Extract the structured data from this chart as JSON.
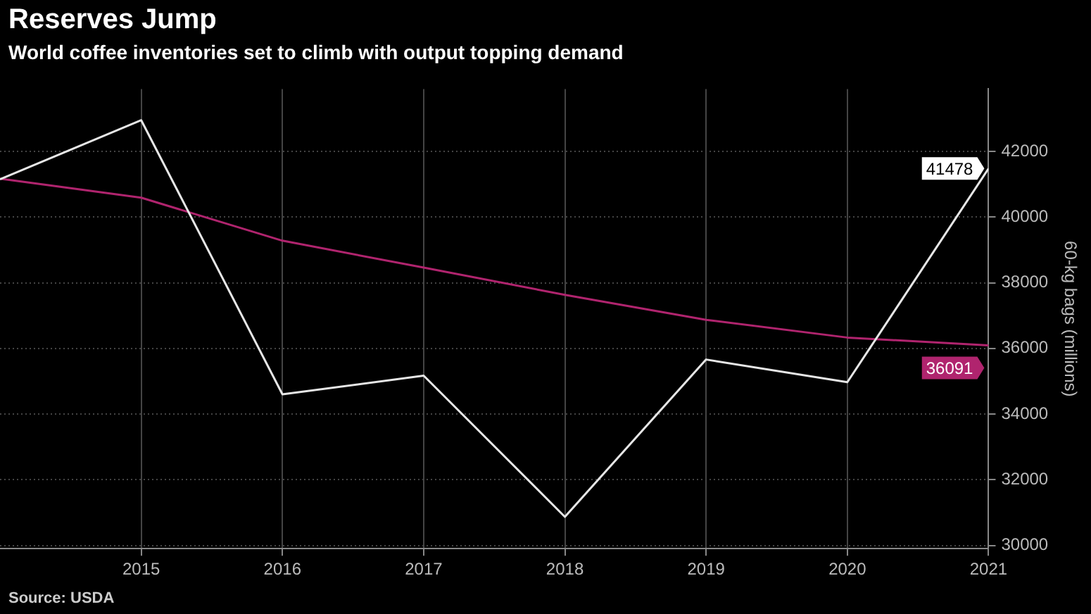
{
  "chart_data": {
    "type": "line",
    "title": "Reserves Jump",
    "subtitle": "World coffee inventories set to climb with output topping demand",
    "ylabel": "60-kg bags (millions)",
    "annotations": [
      "Source: USDA"
    ],
    "x": [
      2014,
      2015,
      2016,
      2017,
      2018,
      2019,
      2020,
      2021
    ],
    "series": [
      {
        "color": "#e6e6e6",
        "values": [
          41150,
          42950,
          34600,
          35170,
          30870,
          35660,
          34970,
          41478
        ],
        "value_labels": [
          null,
          null,
          null,
          null,
          null,
          null,
          null,
          "41478"
        ]
      },
      {
        "color": "#b0246e",
        "values": [
          41170,
          40590,
          39280,
          38460,
          37630,
          36870,
          36330,
          36091
        ],
        "value_labels": [
          null,
          null,
          null,
          null,
          null,
          null,
          null,
          "36091"
        ]
      }
    ],
    "xlim": [
      2014,
      2021
    ],
    "xticks": [
      2015,
      2016,
      2017,
      2018,
      2019,
      2020,
      2021
    ],
    "ylim": [
      29900,
      43900
    ],
    "yticks": [
      30000,
      32000,
      34000,
      36000,
      38000,
      40000,
      42000
    ],
    "grid": true,
    "legend": false,
    "marker": "none",
    "line_style": "solid"
  }
}
